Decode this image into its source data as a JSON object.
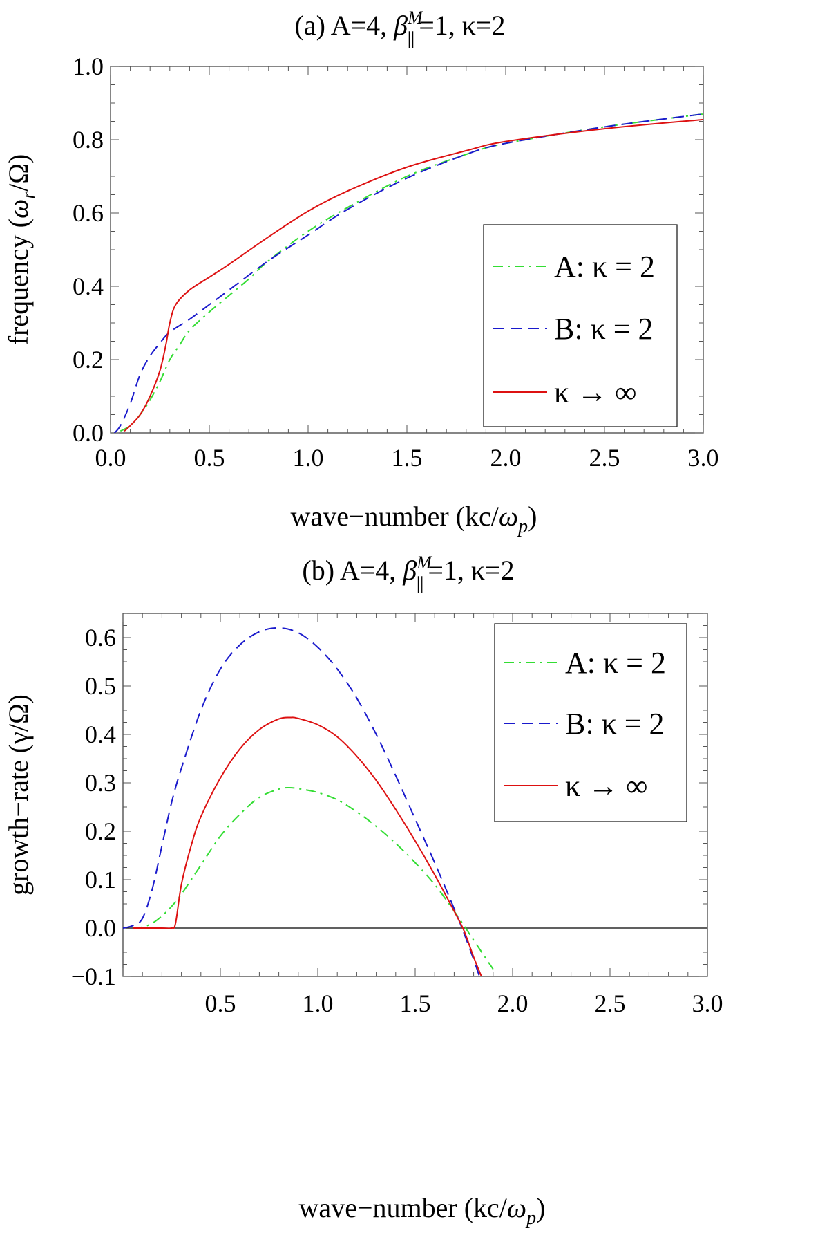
{
  "chart_data": [
    {
      "id": "a",
      "type": "line",
      "title": {
        "prefix": "(a) A=4, ",
        "beta": "β",
        "beta_sup": "M",
        "beta_sub": "||",
        "suffix": "=1, κ=2"
      },
      "xlabel": {
        "text": "wave−number (kc/",
        "omega": "ω",
        "sub": "p",
        "close": ")"
      },
      "ylabel": {
        "text": "frequency (",
        "omega": "ω",
        "sub": "r",
        "tail": "/Ω)"
      },
      "xlim": [
        0,
        3
      ],
      "ylim": [
        0,
        1
      ],
      "xticks": [
        "0.0",
        "0.5",
        "1.0",
        "1.5",
        "2.0",
        "2.5",
        "3.0"
      ],
      "xtick_values": [
        0,
        0.5,
        1,
        1.5,
        2,
        2.5,
        3
      ],
      "yticks": [
        "0.0",
        "0.2",
        "0.4",
        "0.6",
        "0.8",
        "1.0"
      ],
      "ytick_values": [
        0,
        0.2,
        0.4,
        0.6,
        0.8,
        1.0
      ],
      "zero_line": false,
      "legend_position": "middle-right",
      "series": [
        {
          "name": "A: κ = 2",
          "color": "#33dd33",
          "style": "dashdot",
          "x": [
            0.05,
            0.1,
            0.15,
            0.2,
            0.25,
            0.3,
            0.35,
            0.4,
            0.5,
            0.6,
            0.7,
            0.8,
            1.0,
            1.2,
            1.5,
            1.8,
            2.0,
            2.5,
            3.0
          ],
          "y": [
            0.005,
            0.02,
            0.05,
            0.09,
            0.14,
            0.2,
            0.24,
            0.28,
            0.33,
            0.375,
            0.42,
            0.47,
            0.55,
            0.615,
            0.7,
            0.76,
            0.79,
            0.835,
            0.87
          ]
        },
        {
          "name": "B: κ = 2",
          "color": "#1a1acc",
          "style": "dashed",
          "x": [
            0.02,
            0.05,
            0.1,
            0.15,
            0.2,
            0.25,
            0.3,
            0.4,
            0.5,
            0.6,
            0.8,
            1.0,
            1.2,
            1.5,
            1.8,
            2.0,
            2.5,
            3.0
          ],
          "y": [
            0.0,
            0.02,
            0.08,
            0.16,
            0.21,
            0.245,
            0.275,
            0.31,
            0.35,
            0.39,
            0.47,
            0.54,
            0.61,
            0.695,
            0.76,
            0.79,
            0.835,
            0.87
          ]
        },
        {
          "name": "κ → ∞",
          "color": "#dd1111",
          "style": "solid",
          "x": [
            0.07,
            0.1,
            0.15,
            0.2,
            0.25,
            0.28,
            0.3,
            0.33,
            0.4,
            0.5,
            0.6,
            0.8,
            1.0,
            1.2,
            1.5,
            1.8,
            2.0,
            2.5,
            3.0
          ],
          "y": [
            0.005,
            0.02,
            0.05,
            0.1,
            0.17,
            0.24,
            0.3,
            0.35,
            0.39,
            0.425,
            0.46,
            0.535,
            0.605,
            0.66,
            0.725,
            0.77,
            0.795,
            0.83,
            0.855
          ]
        }
      ]
    },
    {
      "id": "b",
      "type": "line",
      "title": {
        "prefix": "(b) A=4, ",
        "beta": "β",
        "beta_sup": "M",
        "beta_sub": "||",
        "suffix": "=1, κ=2"
      },
      "xlabel": {
        "text": "wave−number (kc/",
        "omega": "ω",
        "sub": "p",
        "close": ")"
      },
      "ylabel": {
        "text": "growth−rate (γ/Ω)"
      },
      "xlim": [
        0,
        3
      ],
      "ylim": [
        -0.1,
        0.65
      ],
      "xticks": [
        "0.5",
        "1.0",
        "1.5",
        "2.0",
        "2.5",
        "3.0"
      ],
      "xtick_values": [
        0.5,
        1,
        1.5,
        2,
        2.5,
        3
      ],
      "yticks": [
        "−0.1",
        "0.0",
        "0.1",
        "0.2",
        "0.3",
        "0.4",
        "0.5",
        "0.6"
      ],
      "ytick_values": [
        -0.1,
        0,
        0.1,
        0.2,
        0.3,
        0.4,
        0.5,
        0.6
      ],
      "zero_line": true,
      "legend_position": "top-right",
      "series": [
        {
          "name": "A: κ = 2",
          "color": "#33dd33",
          "style": "dashdot",
          "x": [
            0.05,
            0.1,
            0.15,
            0.2,
            0.25,
            0.3,
            0.4,
            0.5,
            0.6,
            0.7,
            0.8,
            0.85,
            0.9,
            1.0,
            1.1,
            1.2,
            1.3,
            1.4,
            1.5,
            1.6,
            1.7,
            1.8,
            1.9
          ],
          "y": [
            0.0,
            0.002,
            0.01,
            0.025,
            0.045,
            0.07,
            0.13,
            0.19,
            0.235,
            0.27,
            0.287,
            0.29,
            0.288,
            0.28,
            0.265,
            0.24,
            0.21,
            0.175,
            0.135,
            0.09,
            0.035,
            -0.025,
            -0.085
          ]
        },
        {
          "name": "B: κ = 2",
          "color": "#1a1acc",
          "style": "dashed",
          "x": [
            0.0,
            0.05,
            0.1,
            0.15,
            0.2,
            0.25,
            0.3,
            0.4,
            0.5,
            0.6,
            0.7,
            0.8,
            0.9,
            1.0,
            1.1,
            1.2,
            1.3,
            1.4,
            1.5,
            1.6,
            1.7,
            1.75,
            1.8,
            1.83
          ],
          "y": [
            0.0,
            0.005,
            0.02,
            0.08,
            0.17,
            0.26,
            0.33,
            0.45,
            0.535,
            0.585,
            0.612,
            0.62,
            0.61,
            0.58,
            0.535,
            0.475,
            0.4,
            0.315,
            0.225,
            0.135,
            0.04,
            -0.01,
            -0.065,
            -0.1
          ]
        },
        {
          "name": "κ → ∞",
          "color": "#dd1111",
          "style": "solid",
          "x": [
            0.05,
            0.2,
            0.25,
            0.27,
            0.3,
            0.35,
            0.4,
            0.5,
            0.6,
            0.7,
            0.8,
            0.86,
            0.9,
            1.0,
            1.1,
            1.2,
            1.3,
            1.4,
            1.5,
            1.6,
            1.7,
            1.75,
            1.8,
            1.84
          ],
          "y": [
            0.0,
            0.0,
            0.0,
            0.01,
            0.09,
            0.17,
            0.23,
            0.31,
            0.37,
            0.41,
            0.432,
            0.435,
            0.433,
            0.42,
            0.395,
            0.355,
            0.305,
            0.245,
            0.18,
            0.11,
            0.035,
            -0.005,
            -0.06,
            -0.1
          ]
        }
      ]
    }
  ]
}
